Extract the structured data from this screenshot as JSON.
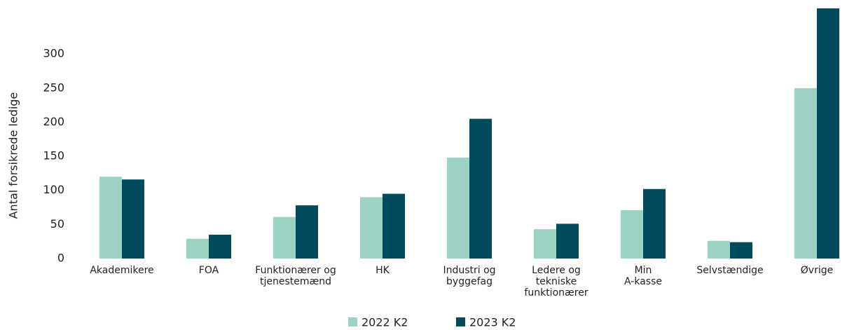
{
  "chart_data": {
    "type": "bar",
    "y_axis_label": "Antal forsikrede ledige",
    "categories": [
      "Akademikere",
      "FOA",
      "Funktionærer og\ntjenestemænd",
      "HK",
      "Industri og\nbyggefag",
      "Ledere og\ntekniske\nfunktionærer",
      "Min\nA-kasse",
      "Selvstændige",
      "Øvrige"
    ],
    "series": [
      {
        "name": "2022 K2",
        "color": "#9dd3c4",
        "values": [
          120,
          29,
          61,
          90,
          148,
          43,
          71,
          26,
          250
        ]
      },
      {
        "name": "2023 K2",
        "color": "#004b5e",
        "values": [
          116,
          35,
          78,
          95,
          205,
          51,
          102,
          24,
          367
        ]
      }
    ],
    "ylim": [
      0,
      370
    ],
    "yticks": [
      0,
      50,
      100,
      150,
      200,
      250,
      300
    ],
    "grid": false
  }
}
